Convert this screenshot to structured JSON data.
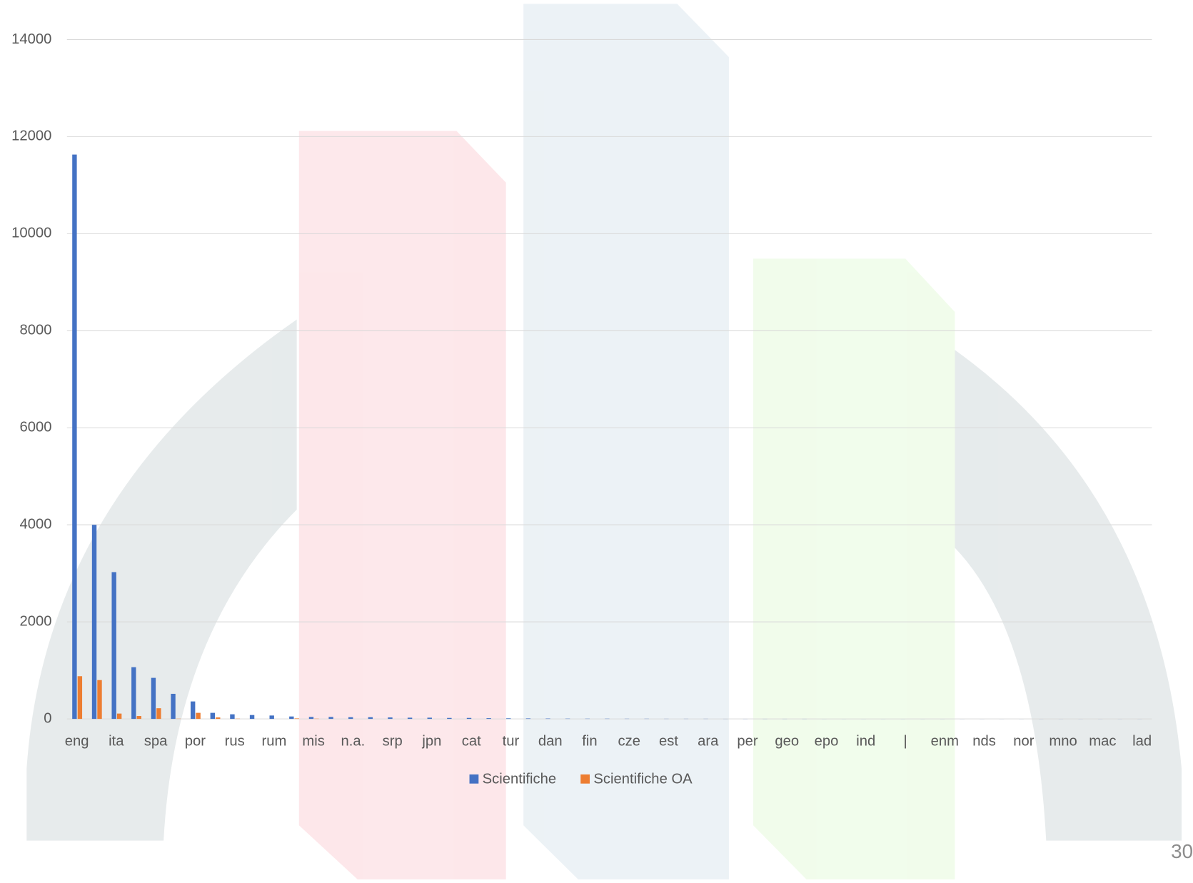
{
  "chart_data": {
    "type": "bar",
    "categories": [
      "eng",
      null,
      "ita",
      null,
      "spa",
      null,
      "por",
      null,
      "rus",
      null,
      "rum",
      null,
      "mis",
      null,
      "n.a.",
      null,
      "srp",
      null,
      "jpn",
      null,
      "cat",
      null,
      "tur",
      null,
      "dan",
      null,
      "fin",
      null,
      "cze",
      null,
      "est",
      null,
      "ara",
      null,
      "per",
      null,
      "geo",
      null,
      "epo",
      null,
      "ind",
      null,
      "|",
      null,
      "enm",
      null,
      "nds",
      null,
      "nor",
      null,
      "mno",
      null,
      "mac",
      null,
      "lad"
    ],
    "series": [
      {
        "name": "Scientifiche",
        "color": "#4472c4",
        "values": [
          11630,
          4000,
          3025,
          1066,
          846,
          517,
          360,
          125,
          95,
          80,
          70,
          50,
          40,
          40,
          35,
          35,
          30,
          25,
          25,
          20,
          20,
          15,
          12,
          10,
          8,
          6,
          5,
          5,
          4,
          4,
          3,
          3,
          3,
          2,
          2,
          2,
          2,
          2,
          1,
          1,
          1,
          1,
          1,
          1,
          1,
          1,
          1,
          1,
          1,
          1,
          1,
          1,
          1,
          1,
          1
        ]
      },
      {
        "name": "Scientifiche OA",
        "color": "#ed7d31",
        "values": [
          880,
          800,
          110,
          60,
          220,
          5,
          125,
          30,
          5,
          0,
          0,
          10,
          5,
          0,
          0,
          0,
          0,
          0,
          0,
          0,
          0,
          0,
          0,
          0,
          0,
          0,
          0,
          0,
          0,
          0,
          0,
          0,
          0,
          0,
          0,
          0,
          0,
          0,
          0,
          0,
          0,
          0,
          0,
          0,
          0,
          0,
          0,
          0,
          0,
          0,
          0,
          0,
          0,
          0,
          0
        ]
      }
    ],
    "ylim": [
      0,
      14000
    ],
    "yticks": [
      0,
      2000,
      4000,
      6000,
      8000,
      10000,
      12000,
      14000
    ],
    "grid": true,
    "legend": "bottom"
  },
  "slide_number": "30"
}
